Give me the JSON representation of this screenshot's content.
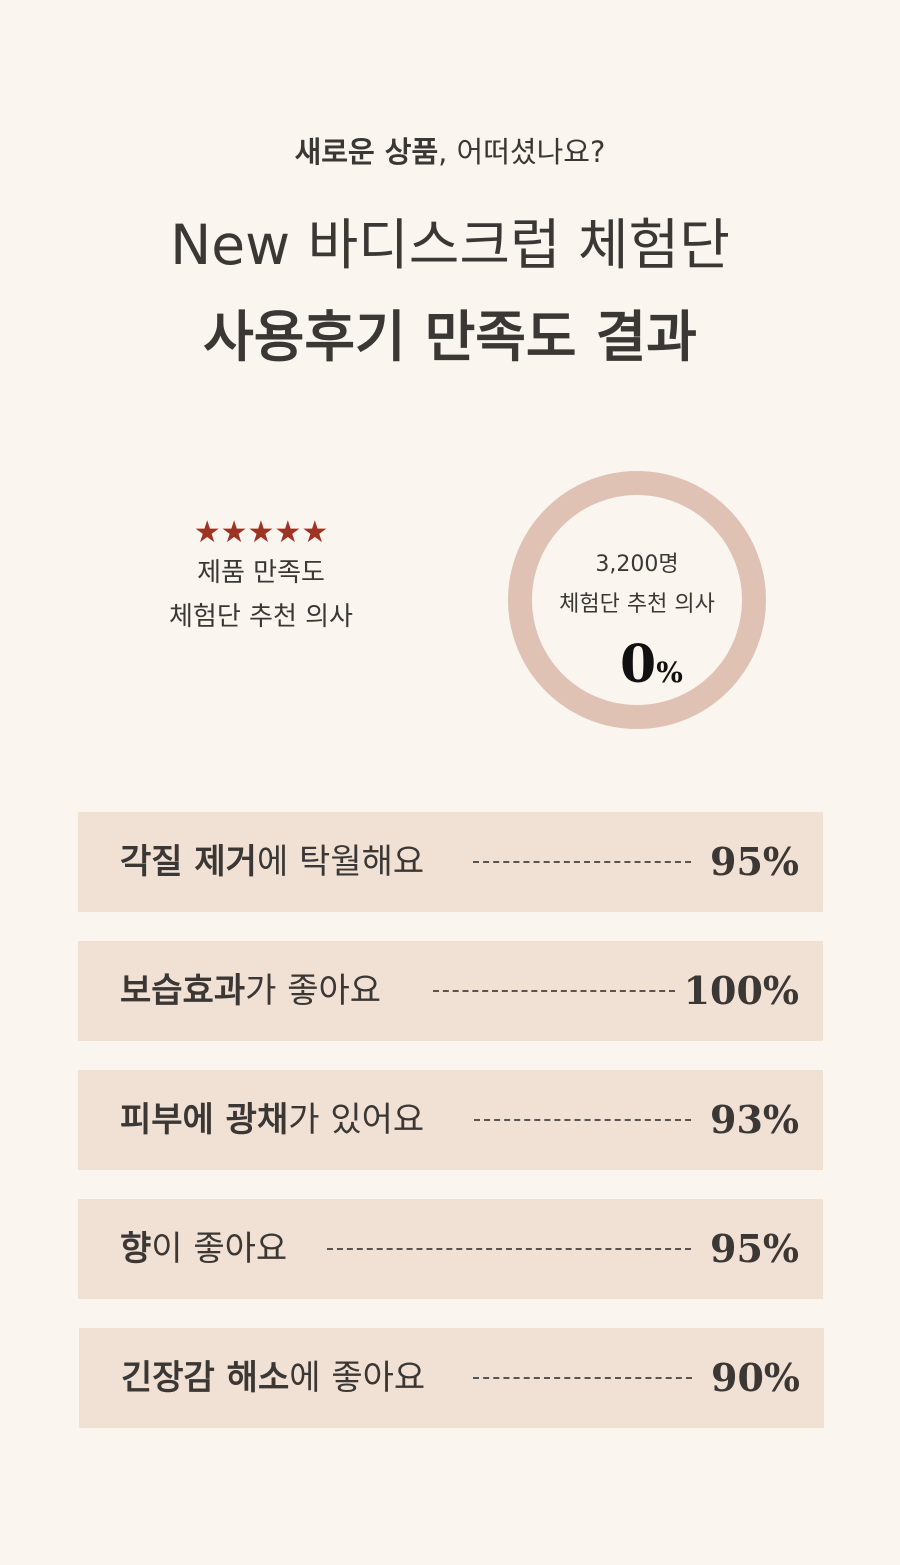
{
  "header": {
    "intro_bold": "새로운 상품",
    "intro_rest": ", 어떠셨나요?",
    "title_line1": "New 바디스크럽 체험단",
    "title_line2": "사용후기 만족도 결과"
  },
  "summary": {
    "stars": "★★★★★",
    "rating_value": 5,
    "line1": "제품 만족도",
    "line2": "체험단 추천 의사"
  },
  "circle": {
    "count": "3,200명",
    "label": "체험단 추천 의사",
    "value": "0",
    "unit": "%",
    "ring_color": "#e0c2b5"
  },
  "colors": {
    "background": "#faf5ef",
    "bar_background": "#f1e1d4",
    "star": "#9e3324",
    "text": "#3b3735"
  },
  "results": [
    {
      "bold": "각질 제거",
      "rest": "에 탁월해요",
      "value": "95%"
    },
    {
      "bold": "보습효과",
      "rest": "가 좋아요",
      "value": "100%"
    },
    {
      "bold": "피부에 광채",
      "rest": "가 있어요",
      "value": "93%"
    },
    {
      "bold": "향",
      "rest": "이 좋아요",
      "value": "95%"
    },
    {
      "bold": "긴장감 해소",
      "rest": "에 좋아요",
      "value": "90%"
    }
  ]
}
